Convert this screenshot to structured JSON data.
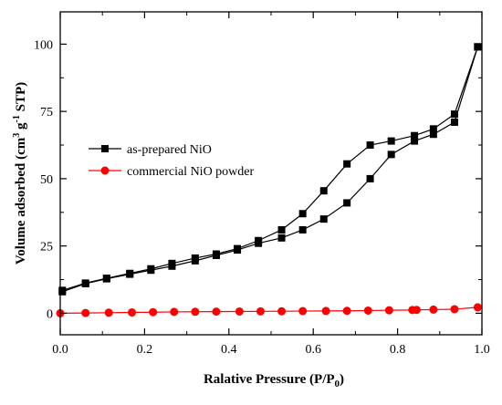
{
  "chart_data": {
    "type": "line",
    "xlabel_main": "Ralative Pressure (P/P",
    "xlabel_sub": "0",
    "xlabel_close": ")",
    "ylabel_parts": {
      "pre": "Volume adsorbed (cm",
      "sup1": "3",
      "mid": " g",
      "sup2": "-1",
      "post": " STP)"
    },
    "xlim": [
      0.0,
      1.0
    ],
    "ylim": [
      -8,
      112
    ],
    "xticks": [
      0.0,
      0.2,
      0.4,
      0.6,
      0.8,
      1.0
    ],
    "xtick_labels": [
      "0.0",
      "0.2",
      "0.4",
      "0.6",
      "0.8",
      "1.0"
    ],
    "yticks": [
      0,
      25,
      50,
      75,
      100
    ],
    "ytick_labels": [
      "0",
      "25",
      "50",
      "75",
      "100"
    ],
    "legend_position": "center-left",
    "series": [
      {
        "name": "as-prepared NiO",
        "color": "#000000",
        "marker": "square",
        "adsorption": {
          "x": [
            0.005,
            0.06,
            0.11,
            0.165,
            0.215,
            0.265,
            0.32,
            0.37,
            0.42,
            0.47,
            0.525,
            0.575,
            0.625,
            0.68,
            0.735,
            0.785,
            0.84,
            0.885,
            0.935,
            0.99
          ],
          "y": [
            8,
            11,
            12.8,
            14.5,
            16,
            17.5,
            19.5,
            21.5,
            23.5,
            26,
            28,
            31,
            35,
            41,
            50,
            59,
            64,
            66.5,
            71,
            99
          ]
        },
        "desorption": {
          "x": [
            0.99,
            0.935,
            0.885,
            0.84,
            0.785,
            0.735,
            0.68,
            0.625,
            0.575,
            0.525,
            0.47,
            0.42,
            0.37,
            0.32,
            0.265,
            0.215,
            0.165,
            0.11,
            0.06,
            0.005
          ],
          "y": [
            99,
            74,
            68.5,
            66,
            64,
            62.5,
            55.5,
            45.5,
            37,
            31,
            27,
            24,
            22,
            20.5,
            18.5,
            16.5,
            14.8,
            13,
            11.2,
            8.5
          ]
        }
      },
      {
        "name": "commercial NiO powder",
        "color": "#ff0000",
        "marker": "circle",
        "adsorption": {
          "x": [
            0.0,
            0.06,
            0.115,
            0.17,
            0.22,
            0.27,
            0.32,
            0.37,
            0.425,
            0.475,
            0.525,
            0.575,
            0.63,
            0.68,
            0.73,
            0.78,
            0.835,
            0.845,
            0.885,
            0.935,
            0.99
          ],
          "y": [
            0.0,
            0.1,
            0.2,
            0.3,
            0.4,
            0.5,
            0.55,
            0.6,
            0.65,
            0.7,
            0.75,
            0.8,
            0.85,
            0.9,
            1.0,
            1.1,
            1.2,
            1.25,
            1.35,
            1.5,
            2.2
          ]
        }
      }
    ]
  }
}
